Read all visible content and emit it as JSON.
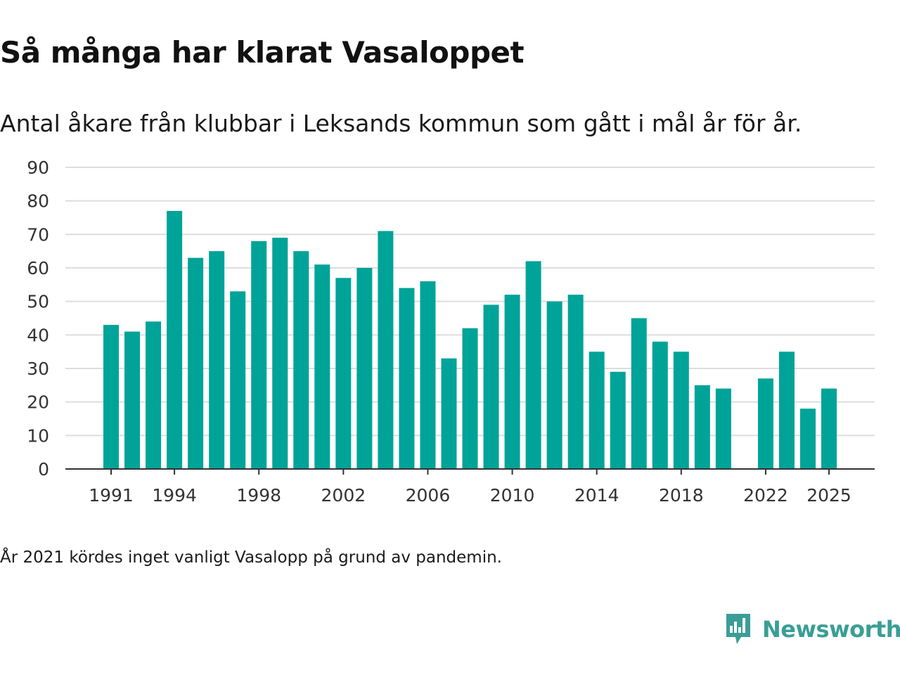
{
  "title": "Så många har klarat Vasaloppet",
  "subtitle": "Antal åkare från klubbar i Leksands kommun som gått i mål år för år.",
  "note": "År 2021 kördes inget vanligt Vasalopp på grund av pandemin.",
  "brand": {
    "name": "Newsworthy",
    "icon": "newsworthy-logo-icon",
    "color": "#3a9e96"
  },
  "colors": {
    "bar": "#00a398",
    "grid": "#dddddd",
    "axis": "#333333"
  },
  "chart_data": {
    "type": "bar",
    "title": "Så många har klarat Vasaloppet",
    "xlabel": "",
    "ylabel": "",
    "ylim": [
      0,
      90
    ],
    "yticks": [
      0,
      10,
      20,
      30,
      40,
      50,
      60,
      70,
      80,
      90
    ],
    "xtick_labels": [
      "1991",
      "1994",
      "1998",
      "2002",
      "2006",
      "2010",
      "2014",
      "2018",
      "2022",
      "2025"
    ],
    "grid": true,
    "categories": [
      1991,
      1992,
      1993,
      1994,
      1995,
      1996,
      1997,
      1998,
      1999,
      2000,
      2001,
      2002,
      2003,
      2004,
      2005,
      2006,
      2007,
      2008,
      2009,
      2010,
      2011,
      2012,
      2013,
      2014,
      2015,
      2016,
      2017,
      2018,
      2019,
      2020,
      2021,
      2022,
      2023,
      2024,
      2025
    ],
    "values": [
      43,
      41,
      44,
      77,
      63,
      65,
      53,
      68,
      69,
      65,
      61,
      57,
      60,
      71,
      54,
      56,
      33,
      42,
      49,
      52,
      62,
      50,
      52,
      35,
      29,
      45,
      38,
      35,
      25,
      24,
      null,
      27,
      35,
      18,
      24
    ]
  }
}
